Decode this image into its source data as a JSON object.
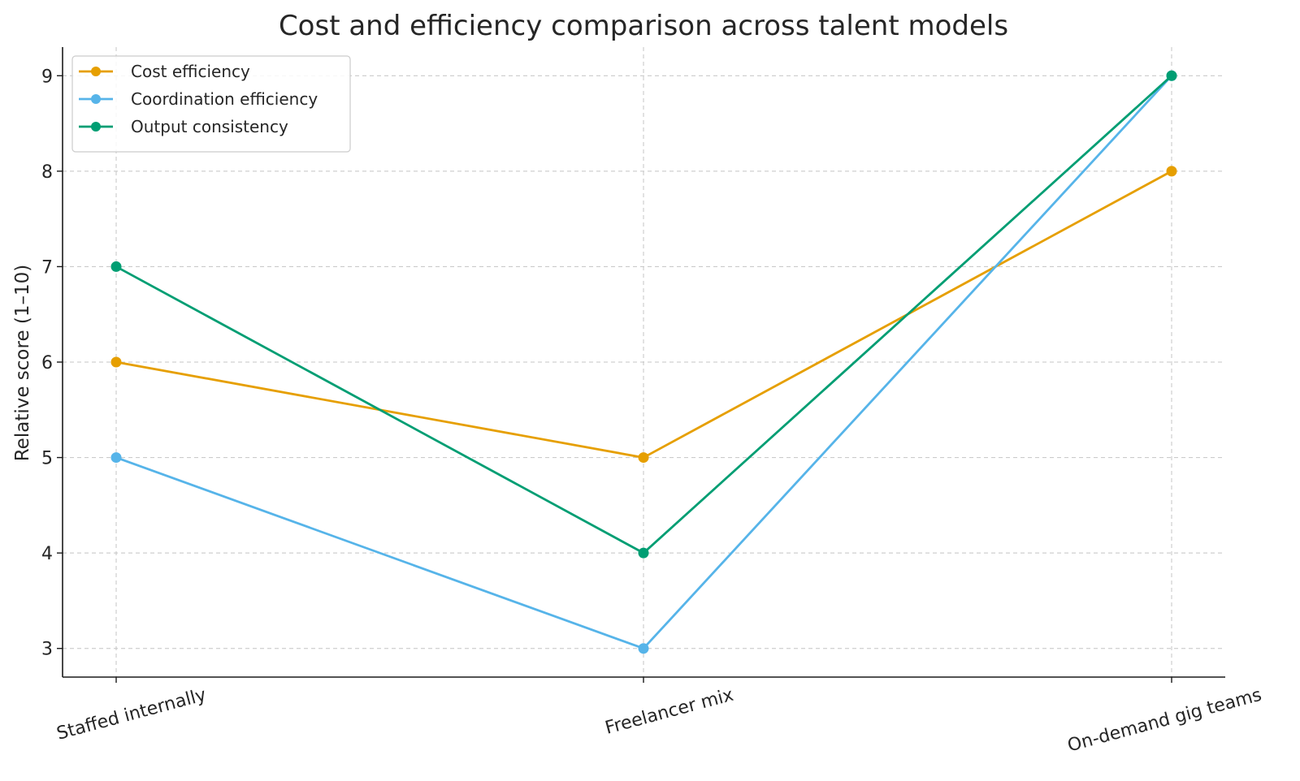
{
  "chart_data": {
    "type": "line",
    "title": "Cost and efficiency comparison across talent models",
    "xlabel": "",
    "ylabel": "Relative score (1–10)",
    "categories": [
      "Staffed internally",
      "Freelancer mix",
      "On-demand gig teams"
    ],
    "ylim": [
      2.7,
      9.3
    ],
    "yticks": [
      3,
      4,
      5,
      6,
      7,
      8,
      9
    ],
    "grid": true,
    "legend_position": "top-left",
    "series": [
      {
        "name": "Cost efficiency",
        "color": "#E69F00",
        "values": [
          6,
          5,
          8
        ]
      },
      {
        "name": "Coordination efficiency",
        "color": "#56B4E9",
        "values": [
          5,
          3,
          9
        ]
      },
      {
        "name": "Output consistency",
        "color": "#009E73",
        "values": [
          7,
          4,
          9
        ]
      }
    ]
  }
}
